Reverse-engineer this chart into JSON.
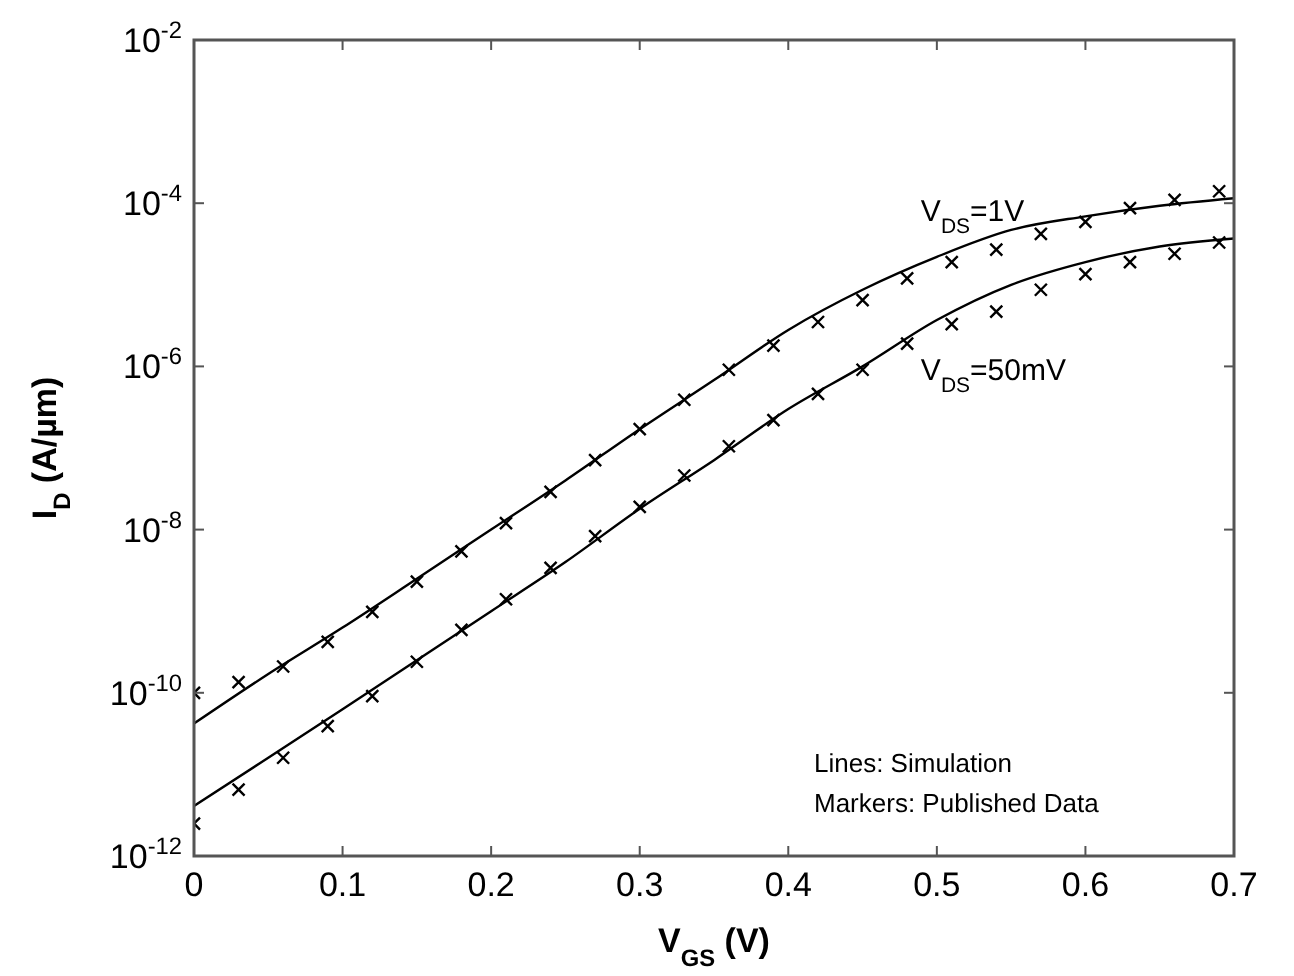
{
  "chart_data": {
    "type": "line",
    "xlabel": "V$_{GS}$ (V)",
    "ylabel": "I$_{D}$ (A/µm)",
    "log": "y",
    "grid": false,
    "xlim": [
      0,
      0.7
    ],
    "ylim": [
      1e-12,
      0.01
    ],
    "xticks": [
      0,
      0.1,
      0.2,
      0.3,
      0.4,
      0.5,
      0.6,
      0.7
    ],
    "yticks": [
      {
        "value": 1e-12,
        "label": "10$^{-12}$"
      },
      {
        "value": 1e-10,
        "label": "10$^{-10}$"
      },
      {
        "value": 1e-08,
        "label": "10$^{-8}$"
      },
      {
        "value": 1e-06,
        "label": "10$^{-6}$"
      },
      {
        "value": 0.0001,
        "label": "10$^{-4}$"
      },
      {
        "value": 0.01,
        "label": "10$^{-2}$"
      }
    ],
    "series": [
      {
        "name": "V$_{DS}$=1V",
        "color": "#000000",
        "marker": "none",
        "line_style": "solid",
        "x": [
          0,
          0.05,
          0.1,
          0.15,
          0.2,
          0.25,
          0.3,
          0.35,
          0.4,
          0.45,
          0.5,
          0.55,
          0.6,
          0.65,
          0.7
        ],
        "values": [
          4.2e-11,
          1.7e-10,
          6.3e-10,
          2.5e-09,
          1e-08,
          4e-08,
          1.7e-07,
          6.8e-07,
          2.8e-06,
          8.7e-06,
          2.2e-05,
          4.7e-05,
          6.9e-05,
          9.3e-05,
          0.000115
        ]
      },
      {
        "name": "V$_{DS}$=50mV",
        "color": "#000000",
        "marker": "none",
        "line_style": "solid",
        "x": [
          0,
          0.05,
          0.1,
          0.15,
          0.2,
          0.25,
          0.3,
          0.35,
          0.4,
          0.45,
          0.5,
          0.55,
          0.6,
          0.65,
          0.7
        ],
        "values": [
          4.1e-12,
          1.6e-11,
          6.3e-11,
          2.5e-10,
          1e-09,
          4e-09,
          1.8e-08,
          7.1e-08,
          3e-07,
          1e-06,
          3.7e-06,
          1e-05,
          1.9e-05,
          2.95e-05,
          3.7e-05
        ]
      },
      {
        "type": "scatter",
        "color": "#000000",
        "marker": "cross",
        "x": [
          0,
          0.03,
          0.06,
          0.09,
          0.12,
          0.15,
          0.18,
          0.21,
          0.24,
          0.27,
          0.3,
          0.33,
          0.36,
          0.39,
          0.42,
          0.45,
          0.48,
          0.51,
          0.54,
          0.57,
          0.6,
          0.63,
          0.66,
          0.69
        ],
        "values": [
          1e-10,
          1.35e-10,
          2.1e-10,
          4.2e-10,
          9.8e-10,
          2.3e-09,
          5.4e-09,
          1.2e-08,
          2.9e-08,
          7.1e-08,
          1.7e-07,
          3.9e-07,
          9.1e-07,
          1.8e-06,
          3.5e-06,
          6.5e-06,
          1.2e-05,
          1.9e-05,
          2.7e-05,
          4.2e-05,
          5.9e-05,
          8.7e-05,
          0.00011,
          0.00014
        ]
      },
      {
        "type": "scatter",
        "color": "#000000",
        "marker": "cross",
        "x": [
          0,
          0.03,
          0.06,
          0.09,
          0.12,
          0.15,
          0.18,
          0.21,
          0.24,
          0.27,
          0.3,
          0.33,
          0.36,
          0.39,
          0.42,
          0.45,
          0.48,
          0.51,
          0.54,
          0.57,
          0.6,
          0.63,
          0.66,
          0.69
        ],
        "values": [
          2.5e-12,
          6.5e-12,
          1.6e-11,
          3.9e-11,
          9.1e-11,
          2.4e-10,
          5.9e-10,
          1.4e-09,
          3.4e-09,
          8.3e-09,
          1.9e-08,
          4.6e-08,
          1.05e-07,
          2.2e-07,
          4.6e-07,
          9.1e-07,
          1.9e-06,
          3.3e-06,
          4.7e-06,
          8.7e-06,
          1.35e-05,
          1.9e-05,
          2.4e-05,
          3.3e-05
        ]
      }
    ],
    "annotations": [
      "Lines: Simulation",
      "Markers: Published Data"
    ]
  }
}
